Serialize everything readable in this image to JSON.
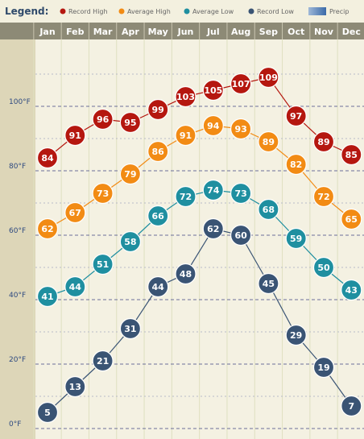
{
  "chart_data": {
    "type": "line",
    "legend": {
      "title": "Legend:",
      "items": [
        {
          "label": "Record High",
          "color": "#b5170f"
        },
        {
          "label": "Average High",
          "color": "#f28b14"
        },
        {
          "label": "Average Low",
          "color": "#1f8fa0"
        },
        {
          "label": "Record Low",
          "color": "#3a5474"
        },
        {
          "label": "Precip",
          "color": "#3a6aa8"
        }
      ]
    },
    "categories": [
      "Jan",
      "Feb",
      "Mar",
      "Apr",
      "May",
      "Jun",
      "Jul",
      "Aug",
      "Sep",
      "Oct",
      "Nov",
      "Dec"
    ],
    "y_ticks": [
      {
        "value": 0,
        "label": "0°F"
      },
      {
        "value": 20,
        "label": "20°F"
      },
      {
        "value": 40,
        "label": "40°F"
      },
      {
        "value": 60,
        "label": "60°F"
      },
      {
        "value": 80,
        "label": "80°F"
      },
      {
        "value": 100,
        "label": "100°F"
      }
    ],
    "ylim": [
      0,
      120
    ],
    "series": [
      {
        "name": "Record High",
        "color": "#b5170f",
        "values": [
          84,
          91,
          96,
          95,
          99,
          103,
          105,
          107,
          109,
          97,
          89,
          85
        ]
      },
      {
        "name": "Average High",
        "color": "#f28b14",
        "values": [
          62,
          67,
          73,
          79,
          86,
          91,
          94,
          93,
          89,
          82,
          72,
          65
        ]
      },
      {
        "name": "Average Low",
        "color": "#1f8fa0",
        "values": [
          41,
          44,
          51,
          58,
          66,
          72,
          74,
          73,
          68,
          59,
          50,
          43
        ]
      },
      {
        "name": "Record Low",
        "color": "#3a5474",
        "values": [
          5,
          13,
          21,
          31,
          44,
          48,
          62,
          60,
          45,
          29,
          19,
          7
        ]
      }
    ]
  }
}
